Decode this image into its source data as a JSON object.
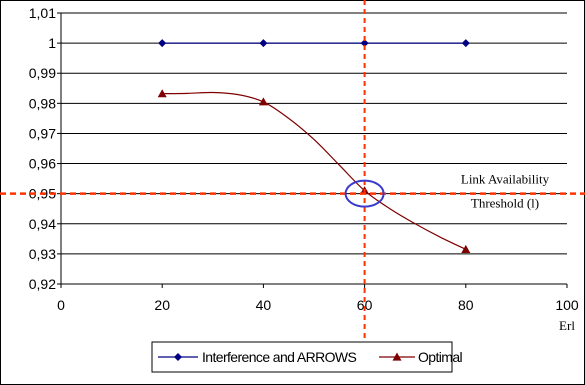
{
  "chart_data": {
    "type": "line",
    "xlabel": "Erl",
    "ylabel": "",
    "xlim": [
      0,
      100
    ],
    "ylim": [
      0.92,
      1.01
    ],
    "x_ticks": [
      "0",
      "20",
      "40",
      "60",
      "80",
      "100"
    ],
    "y_ticks": [
      "0,92",
      "0,93",
      "0,94",
      "0,95",
      "0,96",
      "0,97",
      "0,98",
      "0,99",
      "1",
      "1,01"
    ],
    "grid": "horizontal",
    "legend_position": "bottom",
    "series": [
      {
        "name": "Interference and ARROWS",
        "color": "#000080",
        "marker": "diamond",
        "x": [
          20,
          40,
          60,
          80
        ],
        "values": [
          1.0,
          1.0,
          1.0,
          1.0
        ]
      },
      {
        "name": "Optimal",
        "color": "#7f0000",
        "marker": "triangle",
        "x": [
          20,
          40,
          60,
          80
        ],
        "values": [
          0.9832,
          0.9805,
          0.951,
          0.9315
        ],
        "curve_x": [
          20,
          25,
          30,
          35,
          40,
          45,
          50,
          55,
          60,
          65,
          70,
          75,
          80
        ],
        "curve_y": [
          0.9832,
          0.9833,
          0.9836,
          0.9829,
          0.9805,
          0.975,
          0.968,
          0.9595,
          0.951,
          0.945,
          0.94,
          0.9355,
          0.9315
        ]
      }
    ],
    "threshold": {
      "value": 0.95,
      "label_line1": "Link Availability",
      "label_line2": "Threshold (l)",
      "color": "#ff3300"
    },
    "marked_x": 60,
    "highlight_circle_color": "#3a3acc"
  }
}
